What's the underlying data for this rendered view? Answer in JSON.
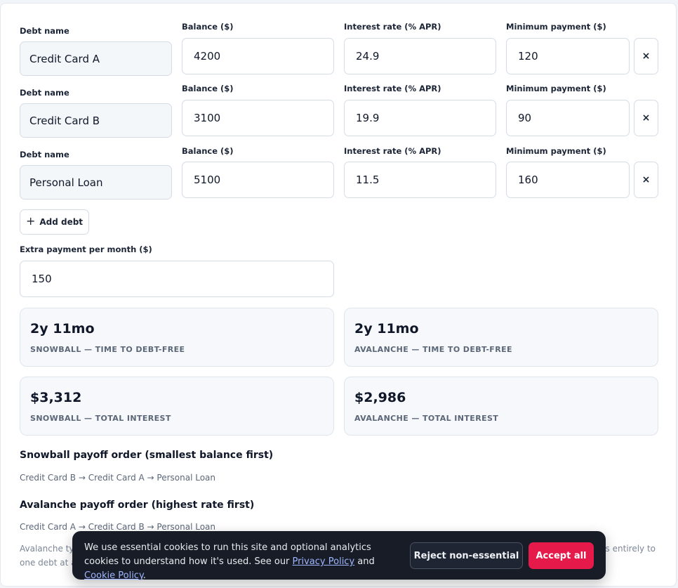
{
  "labels": {
    "debt_name": "Debt name",
    "balance": "Balance ($)",
    "rate": "Interest rate (% APR)",
    "min_payment": "Minimum payment ($)",
    "remove_icon": "×"
  },
  "debts": [
    {
      "name": "Credit Card A",
      "balance": "4200",
      "rate": "24.9",
      "min_payment": "120"
    },
    {
      "name": "Credit Card B",
      "balance": "3100",
      "rate": "19.9",
      "min_payment": "90"
    },
    {
      "name": "Personal Loan",
      "balance": "5100",
      "rate": "11.5",
      "min_payment": "160"
    }
  ],
  "add_debt": {
    "icon": "+",
    "label": "Add debt"
  },
  "extra": {
    "label": "Extra payment per month ($)",
    "value": "150"
  },
  "stats": {
    "snowball_time": {
      "value": "2y 11mo",
      "caption": "Snowball — time to debt-free"
    },
    "avalanche_time": {
      "value": "2y 11mo",
      "caption": "Avalanche — time to debt-free"
    },
    "snowball_interest": {
      "value": "$3,312",
      "caption": "Snowball — total interest"
    },
    "avalanche_interest": {
      "value": "$2,986",
      "caption": "Avalanche — total interest"
    }
  },
  "orders": {
    "snowball_title": "Snowball payoff order (smallest balance first)",
    "snowball_list": "Credit Card B → Credit Card A → Personal Loan",
    "avalanche_title": "Avalanche payoff order (highest rate first)",
    "avalanche_list": "Credit Card A → Credit Card B → Personal Loan"
  },
  "note": {
    "line1_start": "Avalanche typ",
    "line1_end": "es entirely to",
    "line2_start": "one debt at a"
  },
  "cookie": {
    "text_1": "We use essential cookies to run this site and optional analytics cookies to understand how it's used. See our ",
    "privacy_link": "Privacy Policy",
    "text_and": " and ",
    "cookie_link": "Cookie Policy",
    "text_end": ".",
    "reject_label": "Reject non-essential",
    "accept_label": "Accept all"
  },
  "colors": {
    "accent": "#e51a4a",
    "banner_bg": "#171c26",
    "link": "#9fb6ff"
  }
}
